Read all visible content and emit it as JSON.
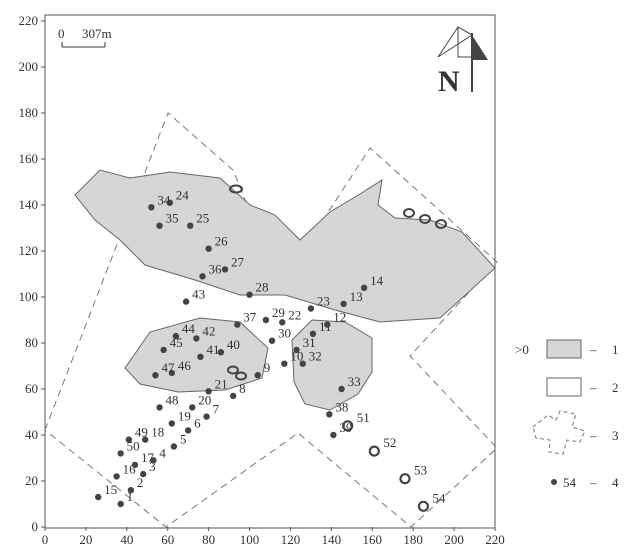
{
  "axes": {
    "x_ticks": [
      "0",
      "20",
      "40",
      "60",
      "80",
      "100",
      "120",
      "140",
      "160",
      "180",
      "200",
      "220"
    ],
    "y_ticks": [
      "0",
      "20",
      "40",
      "60",
      "80",
      "100",
      "120",
      "140",
      "160",
      "180",
      "200",
      "220"
    ]
  },
  "scale_bar": {
    "zero": "0",
    "distance": "307m"
  },
  "north_arrow": {
    "letter": "N"
  },
  "legend": [
    {
      "symbol_text": ">0",
      "label": "1",
      "meaning": "shaded area"
    },
    {
      "symbol_text": "",
      "label": "2",
      "meaning": "white area"
    },
    {
      "symbol_text": "",
      "label": "3",
      "meaning": "dashed cross outline"
    },
    {
      "symbol_text": "54",
      "label": "4",
      "meaning": "numbered point"
    }
  ],
  "points": [
    {
      "n": "1",
      "x": 37,
      "y": 10
    },
    {
      "n": "2",
      "x": 42,
      "y": 16
    },
    {
      "n": "3",
      "x": 48,
      "y": 23
    },
    {
      "n": "4",
      "x": 53,
      "y": 29
    },
    {
      "n": "5",
      "x": 63,
      "y": 35
    },
    {
      "n": "6",
      "x": 70,
      "y": 42
    },
    {
      "n": "7",
      "x": 79,
      "y": 48
    },
    {
      "n": "8",
      "x": 92,
      "y": 57
    },
    {
      "n": "9",
      "x": 104,
      "y": 66
    },
    {
      "n": "10",
      "x": 117,
      "y": 71
    },
    {
      "n": "11",
      "x": 131,
      "y": 84
    },
    {
      "n": "12",
      "x": 138,
      "y": 88
    },
    {
      "n": "13",
      "x": 146,
      "y": 97
    },
    {
      "n": "14",
      "x": 156,
      "y": 104
    },
    {
      "n": "15",
      "x": 26,
      "y": 13
    },
    {
      "n": "16",
      "x": 35,
      "y": 22
    },
    {
      "n": "17",
      "x": 44,
      "y": 27
    },
    {
      "n": "18",
      "x": 49,
      "y": 38
    },
    {
      "n": "19",
      "x": 62,
      "y": 45
    },
    {
      "n": "20",
      "x": 72,
      "y": 52
    },
    {
      "n": "21",
      "x": 80,
      "y": 59
    },
    {
      "n": "22",
      "x": 116,
      "y": 89
    },
    {
      "n": "23",
      "x": 130,
      "y": 95
    },
    {
      "n": "24",
      "x": 61,
      "y": 141
    },
    {
      "n": "25",
      "x": 71,
      "y": 131
    },
    {
      "n": "26",
      "x": 80,
      "y": 121
    },
    {
      "n": "27",
      "x": 88,
      "y": 112
    },
    {
      "n": "28",
      "x": 100,
      "y": 101
    },
    {
      "n": "29",
      "x": 108,
      "y": 90
    },
    {
      "n": "30",
      "x": 111,
      "y": 81
    },
    {
      "n": "31",
      "x": 123,
      "y": 77
    },
    {
      "n": "32",
      "x": 126,
      "y": 71
    },
    {
      "n": "33",
      "x": 145,
      "y": 60
    },
    {
      "n": "34",
      "x": 52,
      "y": 139
    },
    {
      "n": "35",
      "x": 56,
      "y": 131
    },
    {
      "n": "36",
      "x": 77,
      "y": 109
    },
    {
      "n": "37",
      "x": 94,
      "y": 88
    },
    {
      "n": "38",
      "x": 139,
      "y": 49
    },
    {
      "n": "39",
      "x": 141,
      "y": 40
    },
    {
      "n": "40",
      "x": 86,
      "y": 76
    },
    {
      "n": "41",
      "x": 76,
      "y": 74
    },
    {
      "n": "42",
      "x": 74,
      "y": 82
    },
    {
      "n": "43",
      "x": 69,
      "y": 98
    },
    {
      "n": "44",
      "x": 64,
      "y": 83
    },
    {
      "n": "45",
      "x": 58,
      "y": 77
    },
    {
      "n": "46",
      "x": 62,
      "y": 67
    },
    {
      "n": "47",
      "x": 54,
      "y": 66
    },
    {
      "n": "48",
      "x": 56,
      "y": 52
    },
    {
      "n": "49",
      "x": 41,
      "y": 38
    },
    {
      "n": "50",
      "x": 37,
      "y": 32
    }
  ],
  "rings": [
    {
      "n": "51",
      "x": 148,
      "y": 44
    },
    {
      "n": "52",
      "x": 161,
      "y": 33
    },
    {
      "n": "53",
      "x": 176,
      "y": 21
    },
    {
      "n": "54",
      "x": 185,
      "y": 9
    }
  ]
}
